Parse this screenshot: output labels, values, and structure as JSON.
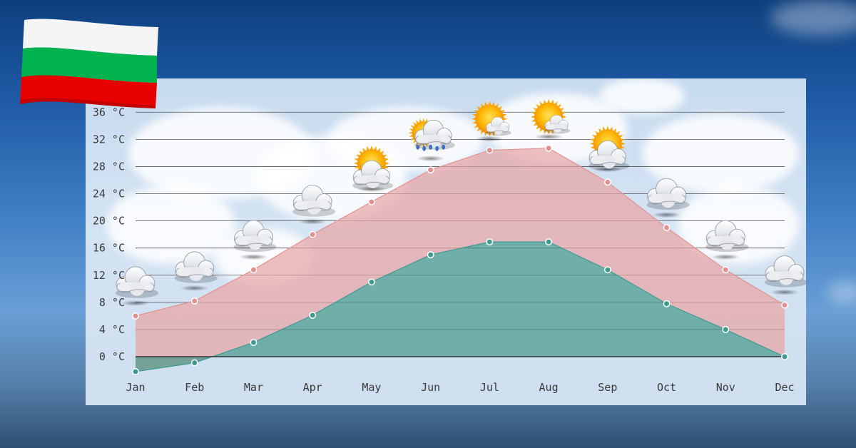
{
  "page": {
    "country_flag": "Bulgaria"
  },
  "colors": {
    "high": "#e3918f",
    "high_fill": "#e8a4a4",
    "low": "#3f9a8f",
    "low_fill": "#4a9a8c",
    "grid": "#555555",
    "flag_white": "#ffffff",
    "flag_green": "#00a651",
    "flag_red": "#e30000"
  },
  "chart_data": {
    "type": "area",
    "categories": [
      "Jan",
      "Feb",
      "Mar",
      "Apr",
      "May",
      "Jun",
      "Jul",
      "Aug",
      "Sep",
      "Oct",
      "Nov",
      "Dec"
    ],
    "series": [
      {
        "key": "high",
        "values": [
          6,
          8.2,
          12.8,
          18,
          22.8,
          27.5,
          30.4,
          30.7,
          25.7,
          19,
          12.8,
          7.6
        ]
      },
      {
        "key": "low",
        "values": [
          -2.2,
          -0.9,
          2.1,
          6.1,
          11,
          15,
          16.9,
          16.9,
          12.8,
          7.8,
          4,
          0
        ]
      }
    ],
    "weather_icons": [
      "cloudy",
      "cloudy",
      "cloudy",
      "cloudy",
      "partly-sunny",
      "sun-cloud-rain",
      "sunny",
      "sunny",
      "partly-sunny",
      "cloudy",
      "cloudy",
      "cloudy"
    ],
    "y_ticks": [
      "0 °C",
      "4 °C",
      "8 °C",
      "12 °C",
      "16 °C",
      "20 °C",
      "24 °C",
      "28 °C",
      "32 °C",
      "36 °C"
    ],
    "y_tick_values": [
      0,
      4,
      8,
      12,
      16,
      20,
      24,
      28,
      32,
      36
    ],
    "ylim": [
      -3,
      38
    ],
    "grid": true,
    "title": "",
    "xlabel": "",
    "ylabel": ""
  }
}
